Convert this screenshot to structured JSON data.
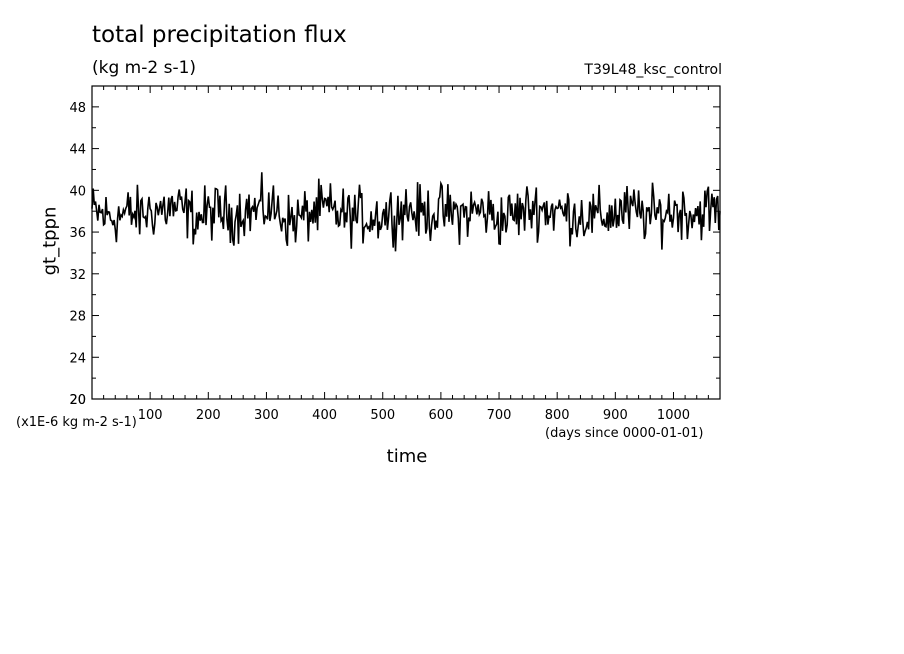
{
  "chart_data": {
    "type": "line",
    "title": "total precipitation flux",
    "subtitle": "(kg m-2 s-1)",
    "run_label": "T39L48_ksc_control",
    "xlabel": "time",
    "ylabel": "gt_tppn",
    "x_unit_note": "(days since 0000-01-01)",
    "y_unit_note": "(x1E-6 kg m-2 s-1)",
    "xlim": [
      0,
      1080
    ],
    "ylim": [
      20,
      50
    ],
    "x_ticks": [
      100,
      200,
      300,
      400,
      500,
      600,
      700,
      800,
      900,
      1000
    ],
    "y_ticks": [
      20,
      24,
      28,
      32,
      36,
      40,
      44,
      48
    ],
    "grid": false,
    "series": [
      {
        "x": [
          0,
          20,
          40,
          60,
          80,
          100,
          120,
          140,
          160,
          180,
          200,
          220,
          240,
          260,
          280,
          300,
          320,
          340,
          360,
          380,
          400,
          420,
          440,
          460,
          480,
          500,
          520,
          540,
          560,
          580,
          600,
          620,
          640,
          660,
          680,
          700,
          720,
          740,
          760,
          780,
          800,
          820,
          840,
          860,
          880,
          900,
          920,
          940,
          960,
          980,
          1000,
          1020,
          1040,
          1060,
          1080
        ],
        "values": [
          38.0,
          37.6,
          37.4,
          37.8,
          37.6,
          38.0,
          38.2,
          38.3,
          38.0,
          37.3,
          37.8,
          38.0,
          37.5,
          38.1,
          38.0,
          38.4,
          38.0,
          37.0,
          37.4,
          37.8,
          38.2,
          37.8,
          37.5,
          37.6,
          37.4,
          37.7,
          37.8,
          38.3,
          37.8,
          37.8,
          38.0,
          37.8,
          37.7,
          38.1,
          37.9,
          37.2,
          37.6,
          37.9,
          38.4,
          38.2,
          38.0,
          37.8,
          37.6,
          37.4,
          37.5,
          37.8,
          38.0,
          37.9,
          37.5,
          37.7,
          38.1,
          38.0,
          37.8,
          38.2,
          38.0
        ],
        "fluctuation": [
          -3.0,
          3.0
        ]
      }
    ]
  }
}
